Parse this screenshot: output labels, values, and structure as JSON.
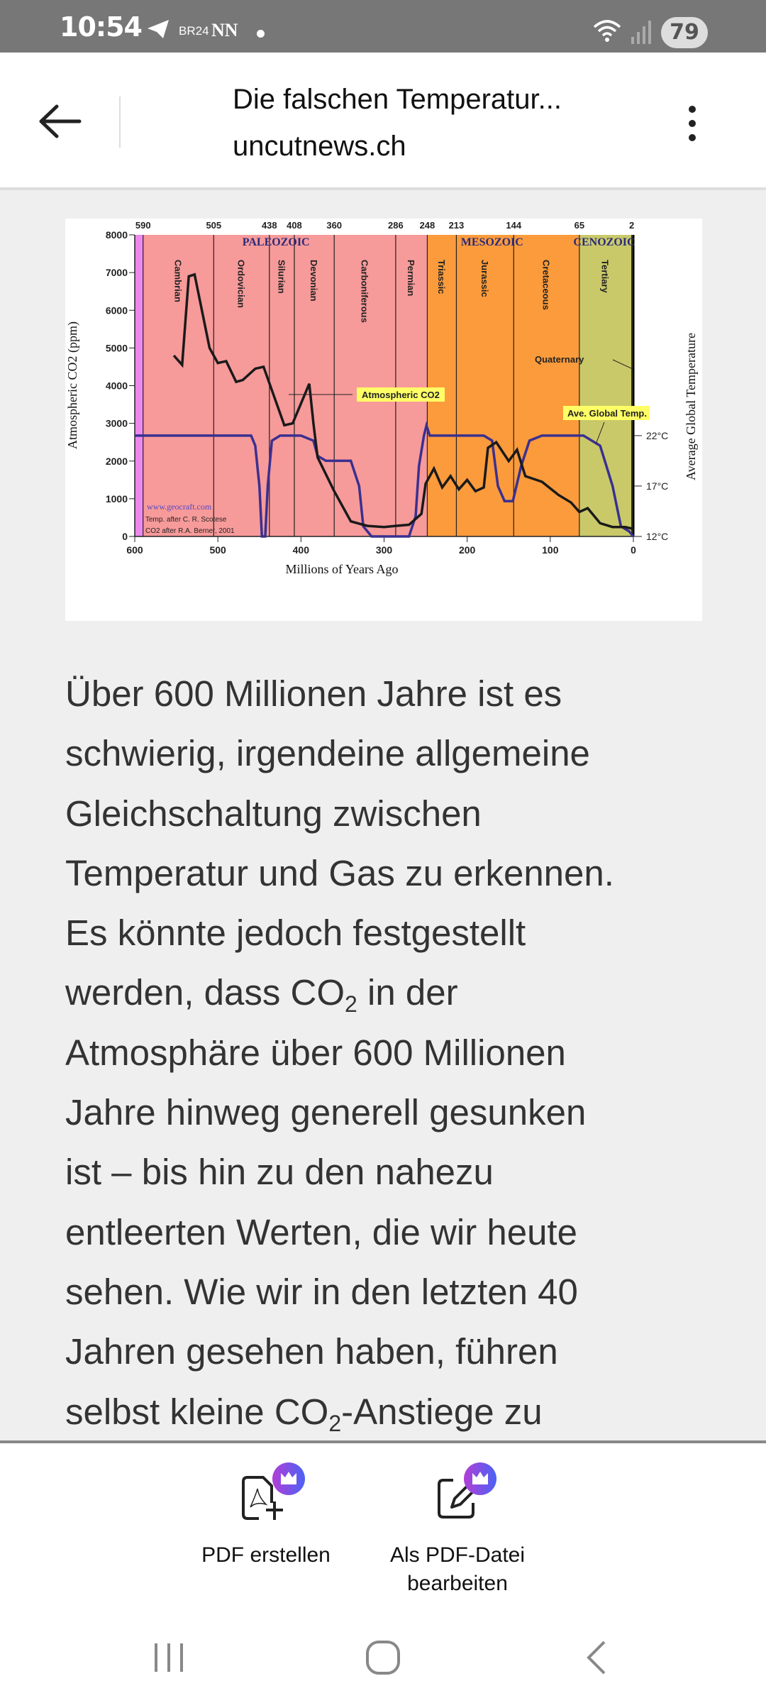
{
  "status_bar": {
    "time": "10:54",
    "br24": "BR24",
    "nn": "NN",
    "battery": "79"
  },
  "header": {
    "title": "Die falschen Temperatur...",
    "subtitle": "uncutnews.ch"
  },
  "figure": {
    "colors": {
      "pre_cambrian": "#ee88ee",
      "paleozoic": "#f79a9a",
      "mesozoic": "#fb9b3c",
      "cenozoic": "#c9c96a",
      "co2_line": "#1a1a1a",
      "temp_line": "#3a3090",
      "label_bg": "#ffff66",
      "era_text": "#2a2a7a"
    },
    "chart_data": {
      "type": "line",
      "xlabel": "Millions of Years Ago",
      "ylabel": "Atmospheric CO2 (ppm)",
      "y2label": "Average Global Temperature",
      "xlim": [
        600,
        0
      ],
      "ylim": [
        0,
        8000
      ],
      "x_ticks": [
        "600",
        "500",
        "400",
        "300",
        "200",
        "100",
        "0"
      ],
      "y_ticks": [
        "0",
        "1000",
        "2000",
        "3000",
        "4000",
        "5000",
        "6000",
        "7000",
        "8000"
      ],
      "y2_ticks": [
        {
          "label": "22°C",
          "value": 22
        },
        {
          "label": "17°C",
          "value": 17
        },
        {
          "label": "12°C",
          "value": 12
        }
      ],
      "boundaries": [
        "590",
        "505",
        "438",
        "408",
        "360",
        "286",
        "248",
        "213",
        "144",
        "65",
        "2"
      ],
      "eras": [
        {
          "name": "PALEOZOIC",
          "center": 430
        },
        {
          "name": "MESOZOIC",
          "center": 170
        },
        {
          "name": "CENOZOIC",
          "center": 35
        }
      ],
      "periods": [
        {
          "name": "Cambrian",
          "start": 590,
          "end": 505
        },
        {
          "name": "Ordovician",
          "start": 505,
          "end": 438
        },
        {
          "name": "Silurian",
          "start": 438,
          "end": 408
        },
        {
          "name": "Devonian",
          "start": 408,
          "end": 360
        },
        {
          "name": "Carboniferous",
          "start": 360,
          "end": 286
        },
        {
          "name": "Permian",
          "start": 286,
          "end": 248
        },
        {
          "name": "Triassic",
          "start": 248,
          "end": 213
        },
        {
          "name": "Jurassic",
          "start": 213,
          "end": 144
        },
        {
          "name": "Cretaceous",
          "start": 144,
          "end": 65
        },
        {
          "name": "Tertiary",
          "start": 65,
          "end": 2
        }
      ],
      "series": [
        {
          "name": "Atmospheric CO2",
          "unit": "ppm",
          "points": [
            [
              553,
              4800
            ],
            [
              543,
              4550
            ],
            [
              535,
              6900
            ],
            [
              528,
              6950
            ],
            [
              510,
              5000
            ],
            [
              500,
              4600
            ],
            [
              490,
              4650
            ],
            [
              478,
              4100
            ],
            [
              470,
              4150
            ],
            [
              455,
              4450
            ],
            [
              445,
              4500
            ],
            [
              420,
              2950
            ],
            [
              410,
              3000
            ],
            [
              390,
              4050
            ],
            [
              385,
              3000
            ],
            [
              380,
              2100
            ],
            [
              360,
              1200
            ],
            [
              340,
              400
            ],
            [
              320,
              280
            ],
            [
              300,
              250
            ],
            [
              286,
              280
            ],
            [
              270,
              310
            ],
            [
              255,
              600
            ],
            [
              250,
              1400
            ],
            [
              240,
              1800
            ],
            [
              230,
              1300
            ],
            [
              220,
              1600
            ],
            [
              210,
              1250
            ],
            [
              200,
              1500
            ],
            [
              190,
              1200
            ],
            [
              180,
              1300
            ],
            [
              175,
              2350
            ],
            [
              165,
              2500
            ],
            [
              150,
              2000
            ],
            [
              140,
              2300
            ],
            [
              130,
              1600
            ],
            [
              110,
              1450
            ],
            [
              90,
              1100
            ],
            [
              75,
              900
            ],
            [
              65,
              650
            ],
            [
              55,
              750
            ],
            [
              40,
              350
            ],
            [
              25,
              250
            ],
            [
              10,
              250
            ],
            [
              0,
              200
            ]
          ]
        },
        {
          "name": "Ave. Global Temp.",
          "unit": "°C",
          "points": [
            [
              600,
              22
            ],
            [
              460,
              22
            ],
            [
              455,
              21
            ],
            [
              450,
              17
            ],
            [
              447,
              12
            ],
            [
              443,
              12
            ],
            [
              440,
              17
            ],
            [
              435,
              21.5
            ],
            [
              425,
              22
            ],
            [
              400,
              22
            ],
            [
              385,
              21.5
            ],
            [
              380,
              20
            ],
            [
              370,
              19.5
            ],
            [
              340,
              19.5
            ],
            [
              330,
              17
            ],
            [
              325,
              13
            ],
            [
              315,
              12
            ],
            [
              270,
              12
            ],
            [
              262,
              14
            ],
            [
              258,
              19
            ],
            [
              252,
              22
            ],
            [
              249,
              23
            ],
            [
              245,
              22
            ],
            [
              200,
              22
            ],
            [
              180,
              22
            ],
            [
              170,
              21.5
            ],
            [
              163,
              17
            ],
            [
              155,
              15.5
            ],
            [
              145,
              15.5
            ],
            [
              135,
              19
            ],
            [
              125,
              21.5
            ],
            [
              110,
              22
            ],
            [
              60,
              22
            ],
            [
              40,
              21
            ],
            [
              25,
              17
            ],
            [
              15,
              13
            ],
            [
              5,
              12.5
            ],
            [
              0,
              12
            ]
          ]
        }
      ],
      "annotations": {
        "co2_label": "Atmospheric CO2",
        "temp_label": "Ave. Global Temp.",
        "quaternary": "Quaternary",
        "website": "www.geocraft.com",
        "credit_temp": "Temp. after C. R. Scotese",
        "credit_co2": "CO2 after R.A. Berner, 2001"
      }
    }
  },
  "article": {
    "lines": [
      {
        "text": "Über 600 Millionen Jahre ist es"
      },
      {
        "text": "schwierig, irgendeine allgemeine"
      },
      {
        "text": "Gleichschaltung zwischen"
      },
      {
        "text": "Temperatur und Gas zu erkennen."
      },
      {
        "text": "Es könnte jedoch festgestellt"
      },
      {
        "text": "werden, dass CO",
        "sub": "2",
        "after": " in der"
      },
      {
        "text": "Atmosphäre über 600 Millionen"
      },
      {
        "text": "Jahre hinweg generell gesunken"
      },
      {
        "text": "ist – bis hin zu den nahezu"
      },
      {
        "text": "entleerten Werten, die wir heute"
      },
      {
        "text": "sehen. Wie wir in den letzten 40"
      },
      {
        "text": "Jahren gesehen haben, führen"
      },
      {
        "text": "selbst kleine CO",
        "sub": "2",
        "after": "-Anstiege zu"
      }
    ]
  },
  "bottom_bar": {
    "create_pdf": "PDF erstellen",
    "edit_pdf_line1": "Als PDF-Datei",
    "edit_pdf_line2": "bearbeiten",
    "premium_gradient": [
      "#b23ed6",
      "#4a63f5"
    ]
  }
}
